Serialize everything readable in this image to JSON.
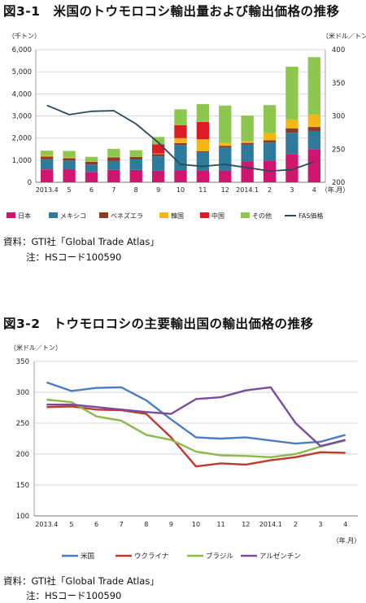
{
  "figure1": {
    "title": "図3-1　米国のトウモロコシ輸出量および輸出価格の推移",
    "source": "資料：GTI社「Global Trade Atlas」",
    "note": "注：HSコード100590"
  },
  "figure2": {
    "title": "図3-2　トウモロコシの主要輸出国の輸出価格の推移",
    "source": "資料：GTI社「Global Trade Atlas」",
    "note": "注：HSコード100590"
  },
  "chart_data": [
    {
      "type": "bar",
      "stacked": true,
      "title": "図3-1　米国のトウモロコシ輸出量および輸出価格の推移",
      "ylabel": "（千トン）",
      "y2label": "（米ドル／トン）",
      "xunit": "（年.月）",
      "ylim": [
        0,
        6000
      ],
      "y2lim": [
        200,
        400
      ],
      "yticks": [
        "0",
        "1,000",
        "2,000",
        "3,000",
        "4,000",
        "5,000",
        "6,000"
      ],
      "y2ticks": [
        "200",
        "250",
        "300",
        "350",
        "400"
      ],
      "categories": [
        "2013.4",
        "5",
        "6",
        "7",
        "8",
        "9",
        "10",
        "11",
        "12",
        "2014.1",
        "2",
        "3",
        "4"
      ],
      "grid": true,
      "legend_position": "bottom",
      "series": [
        {
          "name": "日本",
          "color": "#d0156e",
          "values": [
            580,
            570,
            470,
            560,
            560,
            520,
            550,
            540,
            530,
            940,
            980,
            1280,
            1500
          ]
        },
        {
          "name": "メキシコ",
          "color": "#2e7a9c",
          "values": [
            460,
            420,
            330,
            400,
            470,
            650,
            1140,
            820,
            1040,
            760,
            820,
            960,
            820
          ]
        },
        {
          "name": "ベネズエラ",
          "color": "#8b3a2a",
          "values": [
            120,
            100,
            120,
            170,
            120,
            110,
            80,
            50,
            80,
            80,
            100,
            200,
            180
          ]
        },
        {
          "name": "韓国",
          "color": "#f6b716",
          "values": [
            60,
            40,
            20,
            20,
            10,
            20,
            230,
            540,
            130,
            70,
            320,
            400,
            560
          ]
        },
        {
          "name": "中国",
          "color": "#dd1b24",
          "values": [
            0,
            0,
            0,
            0,
            0,
            420,
            580,
            780,
            0,
            0,
            0,
            0,
            0
          ]
        },
        {
          "name": "その他",
          "color": "#8ec74f",
          "values": [
            210,
            290,
            210,
            360,
            290,
            330,
            720,
            810,
            1690,
            1170,
            1270,
            2390,
            2600
          ]
        },
        {
          "name": "FAS価格",
          "color": "#2a4a58",
          "type": "line",
          "axis": "right",
          "values": [
            316,
            302,
            307,
            308,
            288,
            260,
            227,
            224,
            227,
            222,
            217,
            219,
            231
          ]
        }
      ]
    },
    {
      "type": "line",
      "title": "図3-2　トウモロコシの主要輸出国の輸出価格の推移",
      "ylabel": "（米ドル／トン）",
      "xunit": "（年.月）",
      "ylim": [
        100,
        350
      ],
      "yticks": [
        "100",
        "150",
        "200",
        "250",
        "300",
        "350"
      ],
      "categories": [
        "2013.4",
        "5",
        "6",
        "7",
        "8",
        "9",
        "10",
        "11",
        "12",
        "2014.1",
        "2",
        "3",
        "4"
      ],
      "grid": true,
      "legend_position": "bottom",
      "series": [
        {
          "name": "米国",
          "color": "#4a7ec4",
          "values": [
            316,
            302,
            307,
            308,
            287,
            256,
            227,
            225,
            227,
            222,
            217,
            220,
            231
          ]
        },
        {
          "name": "ウクライナ",
          "color": "#c0392b",
          "values": [
            276,
            277,
            272,
            271,
            265,
            227,
            180,
            185,
            183,
            190,
            195,
            203,
            202
          ]
        },
        {
          "name": "ブラジル",
          "color": "#8db84a",
          "values": [
            288,
            284,
            261,
            254,
            231,
            223,
            204,
            198,
            197,
            195,
            200,
            212,
            222
          ]
        },
        {
          "name": "アルゼンチン",
          "color": "#7a4b9e",
          "values": [
            280,
            280,
            276,
            272,
            268,
            265,
            289,
            292,
            303,
            308,
            250,
            213,
            223
          ]
        }
      ]
    }
  ]
}
